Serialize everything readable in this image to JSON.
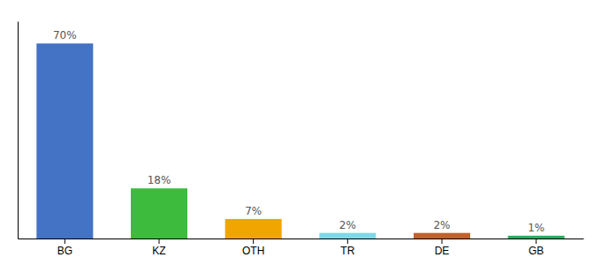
{
  "chart_data": {
    "type": "bar",
    "categories": [
      "BG",
      "KZ",
      "OTH",
      "TR",
      "DE",
      "GB"
    ],
    "values": [
      70,
      18,
      7,
      2,
      2,
      1
    ],
    "value_labels": [
      "70%",
      "18%",
      "7%",
      "2%",
      "2%",
      "1%"
    ],
    "colors": [
      "#4472c4",
      "#3dbb3d",
      "#f0a500",
      "#7fd8e8",
      "#c0622b",
      "#27ae60"
    ],
    "ylim": [
      0,
      78
    ],
    "data_labels": true,
    "tick_labels": "x",
    "grid": false
  }
}
